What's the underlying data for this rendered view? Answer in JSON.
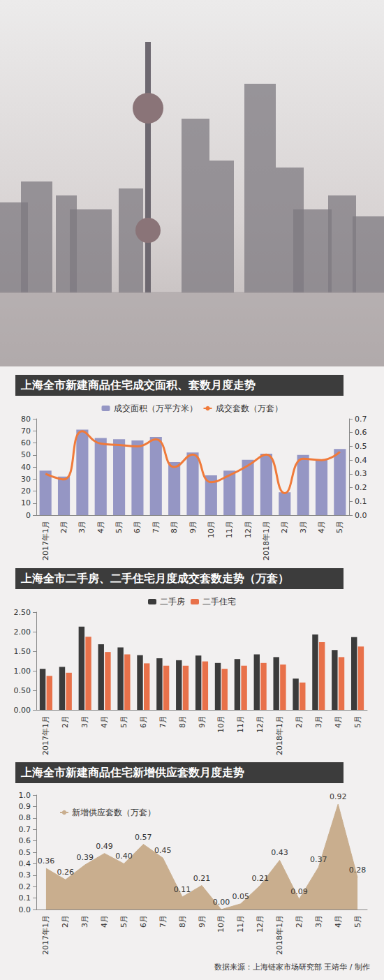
{
  "chart_data": [
    {
      "type": "bar",
      "title": "上海全市新建商品住宅成交面积、套数月度走势",
      "categories": [
        "2017年1月",
        "2月",
        "3月",
        "4月",
        "5月",
        "6月",
        "7月",
        "8月",
        "9月",
        "10月",
        "11月",
        "12月",
        "2018年1月",
        "2月",
        "3月",
        "4月",
        "5月"
      ],
      "series": [
        {
          "name": "成交面积（万平方米）",
          "type": "bar",
          "color": "#9596c4",
          "values": [
            37,
            32,
            71,
            64,
            63,
            62,
            65,
            44,
            52,
            33,
            37,
            46,
            51,
            19,
            50,
            46,
            55
          ]
        },
        {
          "name": "成交套数（万套）",
          "type": "line",
          "axis": "y2",
          "color": "#f07a3a",
          "marker": "none",
          "line_style": "smooth",
          "values": [
            0.3,
            0.26,
            0.61,
            0.52,
            0.51,
            0.5,
            0.55,
            0.35,
            0.44,
            0.24,
            0.29,
            0.36,
            0.44,
            0.16,
            0.41,
            0.4,
            0.46
          ]
        }
      ],
      "ylim": [
        0,
        80
      ],
      "yticks": [
        0,
        10,
        20,
        30,
        40,
        50,
        60,
        70,
        80
      ],
      "y2lim": [
        0,
        0.7
      ],
      "y2ticks": [
        {
          "value": 0,
          "label": "0.0"
        },
        0.1,
        0.2,
        0.3,
        0.4,
        0.5,
        0.6,
        0.7
      ],
      "grid": false,
      "legend": "top"
    },
    {
      "type": "bar",
      "title": "上海全市二手房、二手住宅月度成交套数走势（万套）",
      "categories": [
        "2017年1月",
        "2月",
        "3月",
        "4月",
        "5月",
        "6月",
        "7月",
        "8月",
        "9月",
        "10月",
        "11月",
        "12月",
        "2018年1月",
        "2月",
        "3月",
        "4月",
        "5月"
      ],
      "series": [
        {
          "name": "二手房",
          "color": "#3b3b3b",
          "values": [
            1.05,
            1.1,
            2.13,
            1.68,
            1.6,
            1.4,
            1.32,
            1.27,
            1.39,
            1.2,
            1.3,
            1.42,
            1.35,
            0.8,
            1.93,
            1.53,
            1.86
          ]
        },
        {
          "name": "二手住宅",
          "color": "#e8714a",
          "values": [
            0.87,
            0.95,
            1.87,
            1.48,
            1.42,
            1.19,
            1.13,
            1.13,
            1.24,
            1.05,
            1.13,
            1.2,
            1.16,
            0.7,
            1.73,
            1.35,
            1.62
          ]
        }
      ],
      "ylim": [
        0,
        2.5
      ],
      "yticks": [
        {
          "value": 0,
          "label": "0.00"
        },
        {
          "value": 0.5,
          "label": "0.50"
        },
        {
          "value": 1,
          "label": "1.00"
        },
        {
          "value": 1.5,
          "label": "1.50"
        },
        {
          "value": 2,
          "label": "2.00"
        },
        {
          "value": 2.5,
          "label": "2.50"
        }
      ],
      "grid": false,
      "legend": "top"
    },
    {
      "type": "area",
      "title": "上海全市新建商品住宅新增供应套数月度走势",
      "categories": [
        "2017年1月",
        "2月",
        "3月",
        "4月",
        "5月",
        "6月",
        "7月",
        "8月",
        "9月",
        "10月",
        "11月",
        "12月",
        "2018年1月",
        "2月",
        "3月",
        "4月",
        "5月"
      ],
      "series": [
        {
          "name": "新增供应套数（万套）",
          "color": "#c9ae8e",
          "values": [
            0.36,
            0.26,
            0.39,
            0.49,
            0.4,
            0.57,
            0.45,
            0.11,
            0.21,
            0.0,
            0.05,
            0.21,
            0.43,
            0.09,
            0.37,
            0.92,
            0.28
          ],
          "value_labels": [
            "0.36",
            "0.26",
            "0.39",
            "0.49",
            "0.40",
            "0.57",
            "0.45",
            "0.11",
            "0.21",
            "0.00",
            "0.05",
            "0.21",
            "0.43",
            "0.09",
            "0.37",
            "0.92",
            "0.28"
          ]
        }
      ],
      "ylim": [
        0,
        1
      ],
      "yticks": [
        {
          "value": 0,
          "label": "0.0"
        },
        0.1,
        0.2,
        0.3,
        0.4,
        0.5,
        0.6,
        0.7,
        0.8,
        0.9,
        {
          "value": 1,
          "label": "1.0"
        }
      ],
      "grid": false,
      "legend": "upper left",
      "data_labels": true
    }
  ],
  "footer": "数据来源：上海链家市场研究部 王靖华 / 制作"
}
